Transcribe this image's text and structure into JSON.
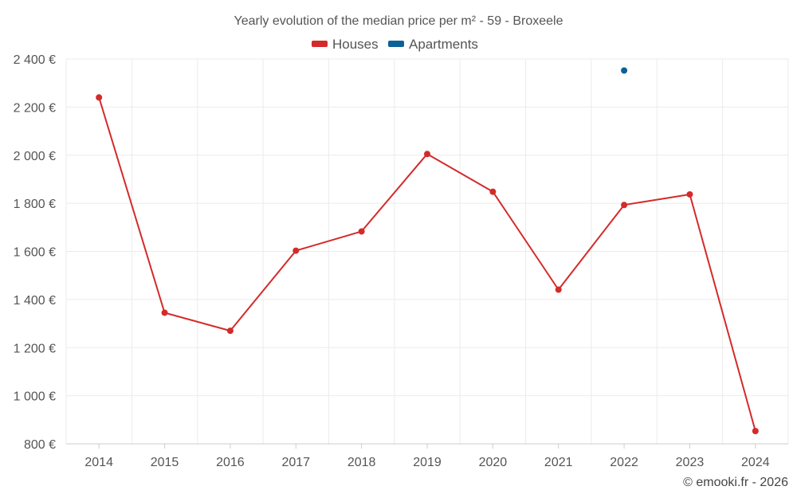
{
  "chart_data": {
    "type": "line",
    "title": "Yearly evolution of the median price per m² - 59 - Broxeele",
    "categories": [
      "2014",
      "2015",
      "2016",
      "2017",
      "2018",
      "2019",
      "2020",
      "2021",
      "2022",
      "2023",
      "2024"
    ],
    "series": [
      {
        "name": "Houses",
        "color": "#d42a2a",
        "values": [
          2240,
          1345,
          1270,
          1603,
          1683,
          2005,
          1848,
          1441,
          1793,
          1837,
          853
        ]
      },
      {
        "name": "Apartments",
        "color": "#0c6296",
        "values": [
          null,
          null,
          null,
          null,
          null,
          null,
          null,
          null,
          2352,
          null,
          null
        ]
      }
    ],
    "yticks": [
      "800 €",
      "1 000 €",
      "1 200 €",
      "1 400 €",
      "1 600 €",
      "1 800 €",
      "2 000 €",
      "2 200 €",
      "2 400 €"
    ],
    "ytick_values": [
      800,
      1000,
      1200,
      1400,
      1600,
      1800,
      2000,
      2200,
      2400
    ],
    "ylim": [
      800,
      2400
    ],
    "grid": true,
    "legend_position": "top-center",
    "credit": "© emooki.fr - 2026"
  }
}
